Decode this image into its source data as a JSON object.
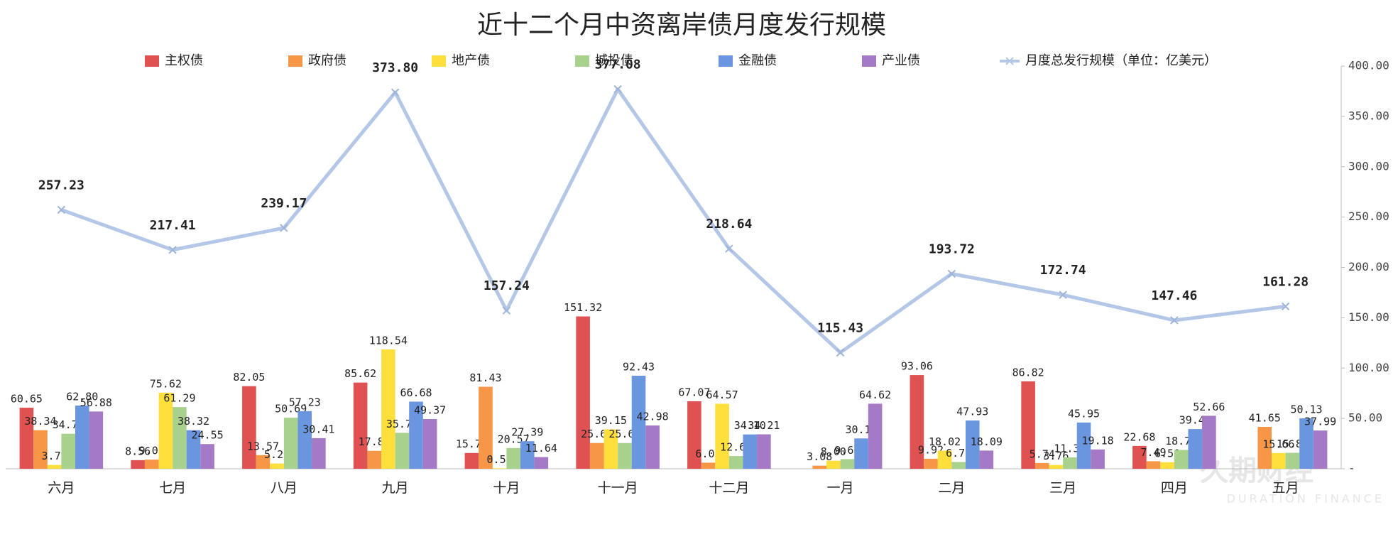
{
  "chart_data": {
    "type": "bar_line",
    "title": "近十二个月中资离岸债月度发行规模",
    "watermark": "久期财经",
    "watermark_sub": "DURATION FINANCE",
    "categories": [
      "六月",
      "七月",
      "八月",
      "九月",
      "十月",
      "十一月",
      "十二月",
      "一月",
      "二月",
      "三月",
      "四月",
      "五月"
    ],
    "series": [
      {
        "name": "主权债",
        "color": "#e05252",
        "values": [
          60.65,
          8.56,
          82.05,
          85.62,
          15.7,
          151.32,
          67.07,
          null,
          93.06,
          86.82,
          22.68,
          null
        ],
        "value_labels": [
          "60.65",
          "8.56",
          "82.05",
          "85.62",
          "15.70",
          "151.32",
          "67.07",
          null,
          "93.06",
          "86.82",
          "22.68",
          null
        ]
      },
      {
        "name": "政府债",
        "color": "#f79646",
        "values": [
          38.34,
          9.07,
          13.57,
          17.84,
          81.43,
          25.6,
          6.07,
          3.08,
          9.92,
          5.74,
          7.49,
          41.65
        ],
        "value_labels": [
          "38.34",
          "9.07",
          "13.57",
          "17.84",
          "81.43",
          "25.60",
          "6.07",
          "3.08",
          "9.92",
          "5.74",
          "7.49",
          "41.65"
        ]
      },
      {
        "name": "地产债",
        "color": "#ffdf3c",
        "values": [
          3.79,
          75.62,
          5.22,
          118.54,
          0.5,
          39.15,
          64.57,
          8.0,
          18.02,
          3.76,
          6.5,
          15.66
        ],
        "value_labels": [
          "3.79",
          "75.62",
          "5.22",
          "118.54",
          "0.50",
          "39.15",
          "64.57",
          "8.00",
          "18.02",
          "3.76",
          "6.50",
          "15.66"
        ]
      },
      {
        "name": "城投债",
        "color": "#a9d18e",
        "values": [
          34.79,
          61.29,
          50.69,
          35.75,
          20.57,
          25.6,
          12.62,
          9.6,
          6.71,
          11.3,
          18.72,
          15.86
        ],
        "value_labels": [
          "34.79",
          "61.29",
          "50.69",
          "35.75",
          "20.57",
          "25.60",
          "12.62",
          "9.60",
          "6.71",
          "11.30",
          "18.72",
          "15.86"
        ]
      },
      {
        "name": "金融债",
        "color": "#6a96e0",
        "values": [
          62.8,
          38.32,
          57.23,
          66.68,
          27.39,
          92.43,
          34.1,
          30.13,
          47.93,
          45.95,
          39.42,
          50.13
        ],
        "value_labels": [
          "62.80",
          "38.32",
          "57.23",
          "66.68",
          "27.39",
          "92.43",
          "34.10",
          "30.13",
          "47.93",
          "45.95",
          "39.42",
          "50.13"
        ]
      },
      {
        "name": "产业债",
        "color": "#a479c6",
        "values": [
          56.88,
          24.55,
          30.41,
          49.37,
          11.64,
          42.98,
          34.21,
          64.62,
          18.09,
          19.18,
          52.66,
          37.99
        ],
        "value_labels": [
          "56.88",
          "24.55",
          "30.41",
          "49.37",
          "11.64",
          "42.98",
          "34.21",
          "64.62",
          "18.09",
          "19.18",
          "52.66",
          "37.99"
        ]
      },
      {
        "name": "月度总发行规模（单位：亿美元）",
        "type": "line",
        "color": "#b4c7e7",
        "values": [
          257.23,
          217.41,
          239.17,
          373.8,
          157.24,
          377.08,
          218.64,
          115.43,
          193.72,
          172.74,
          147.46,
          161.28
        ],
        "value_labels": [
          "257.23",
          "217.41",
          "239.17",
          "373.80",
          "157.24",
          "377.08",
          "218.64",
          "115.43",
          "193.72",
          "172.74",
          "147.46",
          "161.28"
        ]
      }
    ],
    "ylim": [
      0,
      400
    ],
    "yticks": [
      {
        "value": 0,
        "label": "-"
      },
      {
        "value": 50,
        "label": "50.00"
      },
      {
        "value": 100,
        "label": "100.00"
      },
      {
        "value": 150,
        "label": "150.00"
      },
      {
        "value": 200,
        "label": "200.00"
      },
      {
        "value": 250,
        "label": "250.00"
      },
      {
        "value": 300,
        "label": "300.00"
      },
      {
        "value": 350,
        "label": "350.00"
      },
      {
        "value": 400,
        "label": "400.00"
      }
    ],
    "axis_side": "right",
    "grid": false
  }
}
